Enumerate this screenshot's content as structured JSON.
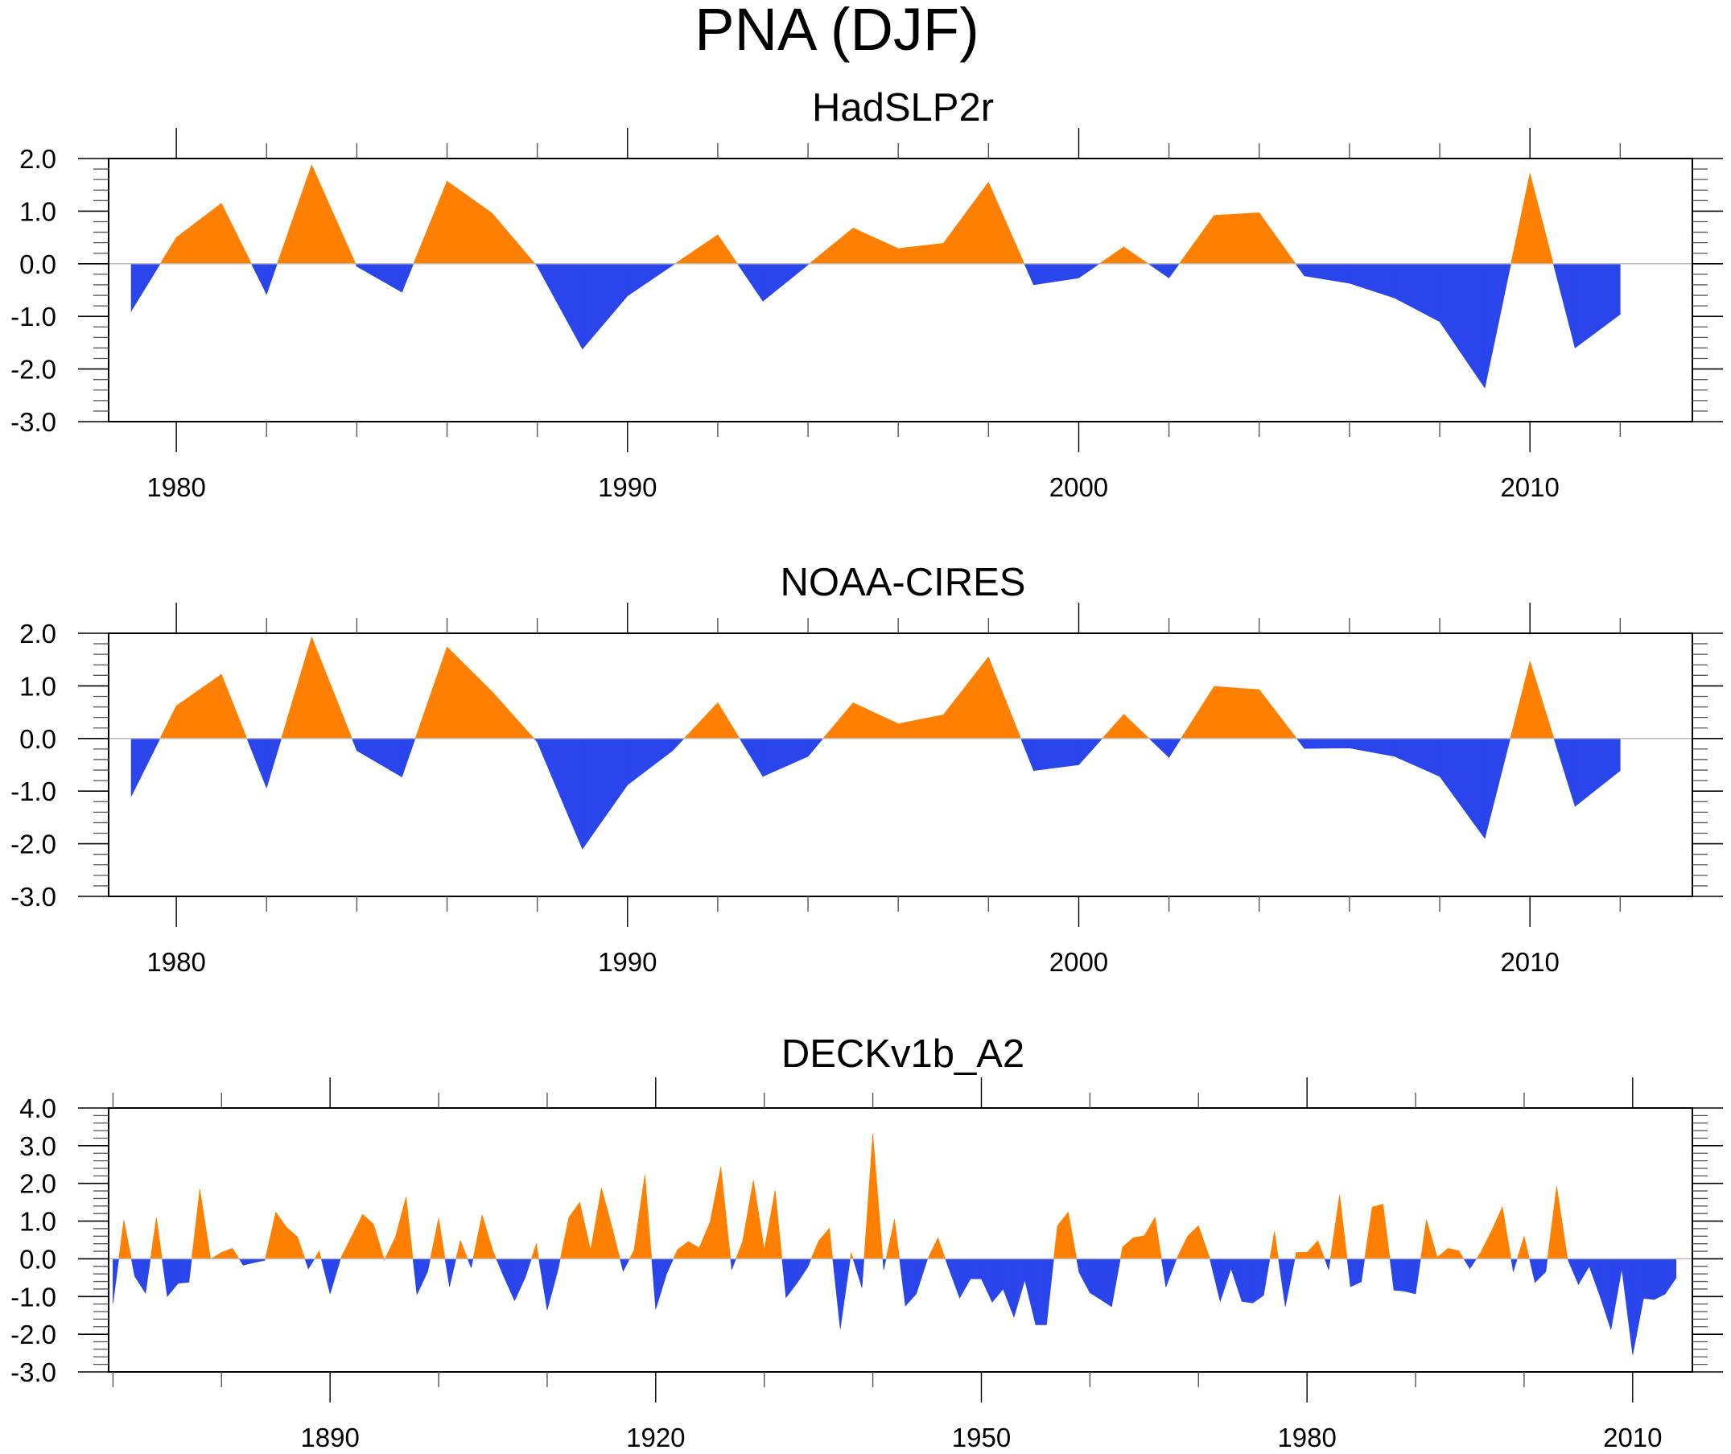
{
  "figure": {
    "title": "PNA (DJF)"
  },
  "colors": {
    "positive": "#FF8000",
    "negative": "#2945EB",
    "frame": "#000000",
    "zero_line": "#BBBBBB"
  },
  "chart_data": [
    {
      "type": "area",
      "title": "HadSLP2r",
      "xlabel": "",
      "ylabel": "",
      "xlim": [
        1978.5,
        2013.6
      ],
      "ylim": [
        -3.0,
        2.0
      ],
      "yticks": [
        "-3.0",
        "-2.0",
        "-1.0",
        "0.0",
        "1.0",
        "2.0"
      ],
      "ytick_values": [
        -3,
        -2,
        -1,
        0,
        1,
        2
      ],
      "xticks": [
        "1980",
        "1990",
        "2000",
        "2010"
      ],
      "xtick_values": [
        1980,
        1990,
        2000,
        2010
      ],
      "xminor_step": 2,
      "yminor_step": 0.2,
      "fill_above_zero": "positive",
      "fill_below_zero": "negative",
      "x": [
        1979,
        1980,
        1981,
        1982,
        1983,
        1984,
        1985,
        1986,
        1987,
        1988,
        1989,
        1990,
        1991,
        1992,
        1993,
        1994,
        1995,
        1996,
        1997,
        1998,
        1999,
        2000,
        2001,
        2002,
        2003,
        2004,
        2005,
        2006,
        2007,
        2008,
        2009,
        2010,
        2011,
        2012
      ],
      "values": [
        -0.9,
        0.5,
        1.15,
        -0.58,
        1.88,
        -0.05,
        -0.54,
        1.57,
        0.96,
        -0.05,
        -1.62,
        -0.61,
        -0.03,
        0.55,
        -0.71,
        -0.02,
        0.68,
        0.29,
        0.39,
        1.55,
        -0.4,
        -0.27,
        0.32,
        -0.27,
        0.92,
        0.97,
        -0.23,
        -0.37,
        -0.65,
        -1.1,
        -2.36,
        1.72,
        -1.6,
        -0.96
      ]
    },
    {
      "type": "area",
      "title": "NOAA-CIRES",
      "xlabel": "",
      "ylabel": "",
      "xlim": [
        1978.5,
        2013.6
      ],
      "ylim": [
        -3.0,
        2.0
      ],
      "yticks": [
        "-3.0",
        "-2.0",
        "-1.0",
        "0.0",
        "1.0",
        "2.0"
      ],
      "ytick_values": [
        -3,
        -2,
        -1,
        0,
        1,
        2
      ],
      "xticks": [
        "1980",
        "1990",
        "2000",
        "2010"
      ],
      "xtick_values": [
        1980,
        1990,
        2000,
        2010
      ],
      "xminor_step": 2,
      "yminor_step": 0.2,
      "fill_above_zero": "positive",
      "fill_below_zero": "negative",
      "x": [
        1979,
        1980,
        1981,
        1982,
        1983,
        1984,
        1985,
        1986,
        1987,
        1988,
        1989,
        1990,
        1991,
        1992,
        1993,
        1994,
        1995,
        1996,
        1997,
        1998,
        1999,
        2000,
        2001,
        2002,
        2003,
        2004,
        2005,
        2006,
        2007,
        2008,
        2009,
        2010,
        2011,
        2012
      ],
      "values": [
        -1.1,
        0.62,
        1.22,
        -0.94,
        1.93,
        -0.23,
        -0.73,
        1.74,
        0.89,
        -0.07,
        -2.1,
        -0.88,
        -0.23,
        0.68,
        -0.72,
        -0.34,
        0.68,
        0.28,
        0.45,
        1.55,
        -0.61,
        -0.5,
        0.46,
        -0.36,
        0.99,
        0.93,
        -0.19,
        -0.18,
        -0.34,
        -0.72,
        -1.9,
        1.47,
        -1.29,
        -0.61
      ]
    },
    {
      "type": "area",
      "title": "DECKv1b_A2",
      "xlabel": "",
      "ylabel": "",
      "xlim": [
        1869.6,
        2015.5
      ],
      "ylim": [
        -3.0,
        4.0
      ],
      "yticks": [
        "-3.0",
        "-2.0",
        "-1.0",
        "0.0",
        "1.0",
        "2.0",
        "3.0",
        "4.0"
      ],
      "ytick_values": [
        -3,
        -2,
        -1,
        0,
        1,
        2,
        3,
        4
      ],
      "xticks": [
        "1890",
        "1920",
        "1950",
        "1980",
        "2010"
      ],
      "xtick_values": [
        1890,
        1920,
        1950,
        1980,
        2010
      ],
      "xminor_step": 10,
      "yminor_step": 0.2,
      "fill_above_zero": "positive",
      "fill_below_zero": "negative",
      "x_start": 1870,
      "x_step": 1,
      "values": [
        -1.18,
        1.03,
        -0.46,
        -0.91,
        1.1,
        -1.0,
        -0.65,
        -0.62,
        1.85,
        -0.01,
        0.17,
        0.28,
        -0.17,
        -0.1,
        -0.04,
        1.24,
        0.83,
        0.58,
        -0.27,
        0.21,
        -0.93,
        0.03,
        0.6,
        1.18,
        0.92,
        -0.03,
        0.56,
        1.64,
        -0.95,
        -0.33,
        1.08,
        -0.74,
        0.49,
        -0.24,
        1.17,
        0.21,
        -0.47,
        -1.11,
        -0.48,
        0.4,
        -1.36,
        -0.29,
        1.1,
        1.5,
        0.23,
        1.88,
        0.81,
        -0.33,
        0.23,
        2.24,
        -1.34,
        -0.4,
        0.24,
        0.46,
        0.29,
        0.97,
        2.44,
        -0.29,
        0.46,
        2.09,
        0.24,
        1.82,
        -1.03,
        -0.65,
        -0.22,
        0.47,
        0.81,
        -1.86,
        0.17,
        -0.77,
        3.32,
        -0.29,
        1.05,
        -1.25,
        -0.93,
        -0.04,
        0.56,
        -0.26,
        -1.04,
        -0.53,
        -0.53,
        -1.15,
        -0.8,
        -1.55,
        -0.56,
        -1.75,
        -1.75,
        0.87,
        1.24,
        -0.36,
        -0.9,
        -1.08,
        -1.27,
        0.31,
        0.56,
        0.61,
        1.1,
        -0.75,
        0.01,
        0.6,
        0.88,
        0.05,
        -1.13,
        -0.26,
        -1.13,
        -1.17,
        -0.97,
        0.73,
        -1.27,
        0.17,
        0.17,
        0.48,
        -0.29,
        1.7,
        -0.74,
        -0.61,
        1.37,
        1.45,
        -0.83,
        -0.86,
        -0.93,
        1.04,
        0.04,
        0.28,
        0.21,
        -0.26,
        0.17,
        0.74,
        1.38,
        -0.34,
        0.6,
        -0.63,
        -0.34,
        1.93,
        0.0,
        -0.68,
        -0.2,
        -1.0,
        -1.88,
        -0.26,
        -2.55,
        -1.05,
        -1.08,
        -0.93,
        -0.51
      ]
    }
  ]
}
